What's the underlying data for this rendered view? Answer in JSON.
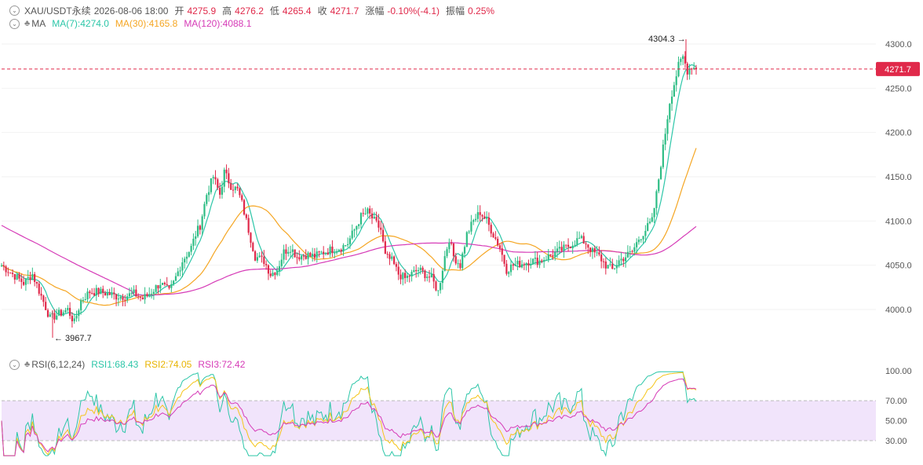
{
  "header": {
    "symbol": "XAU/USDT永续",
    "datetime": "2026-08-06 18:00",
    "open_label": "开",
    "open": "4275.9",
    "high_label": "高",
    "high": "4276.2",
    "low_label": "低",
    "low": "4265.4",
    "close_label": "收",
    "close": "4271.7",
    "change_label": "涨幅",
    "change": "-0.10%(-4.1)",
    "amp_label": "振幅",
    "amp": "0.25%"
  },
  "ma_legend": {
    "name": "MA",
    "ma7": "MA(7):4274.0",
    "ma30": "MA(30):4165.8",
    "ma120": "MA(120):4088.1"
  },
  "rsi_legend": {
    "name": "RSI(6,12,24)",
    "rsi1": "RSI1:68.43",
    "rsi2": "RSI2:74.05",
    "rsi3": "RSI3:72.42"
  },
  "colors": {
    "up": "#2ebd85",
    "down": "#e0294a",
    "ma7": "#2cc6a8",
    "ma30": "#f5a623",
    "ma120": "#d63bb7",
    "rsi1": "#2cc6a8",
    "rsi2": "#f5c518",
    "rsi3": "#d63bb7",
    "rsi_band": "#f1e4fb",
    "price_tag": "#e0294a"
  },
  "chart_data": [
    {
      "type": "candlestick",
      "y_ticks": [
        "4300.0",
        "4250.0",
        "4200.0",
        "4150.0",
        "4100.0",
        "4050.0",
        "4000.0"
      ],
      "ylim": [
        3950,
        4310
      ],
      "current_price": "4271.7",
      "annotations": {
        "max": "4304.3",
        "min": "3967.7"
      },
      "anchors": [
        [
          0,
          4050
        ],
        [
          5,
          4040
        ],
        [
          10,
          4030
        ],
        [
          14,
          4040
        ],
        [
          18,
          4015
        ],
        [
          22,
          3990
        ],
        [
          26,
          3995
        ],
        [
          30,
          4000
        ],
        [
          33,
          3985
        ],
        [
          36,
          4010
        ],
        [
          40,
          4020
        ],
        [
          44,
          4020
        ],
        [
          48,
          4018
        ],
        [
          52,
          4015
        ],
        [
          56,
          4015
        ],
        [
          60,
          4018
        ],
        [
          64,
          4012
        ],
        [
          68,
          4020
        ],
        [
          72,
          4030
        ],
        [
          76,
          4020
        ],
        [
          78,
          4030
        ],
        [
          82,
          4055
        ],
        [
          86,
          4070
        ],
        [
          88,
          4085
        ],
        [
          90,
          4095
        ],
        [
          93,
          4130
        ],
        [
          96,
          4150
        ],
        [
          99,
          4130
        ],
        [
          101,
          4155
        ],
        [
          104,
          4140
        ],
        [
          107,
          4135
        ],
        [
          109,
          4120
        ],
        [
          112,
          4090
        ],
        [
          115,
          4060
        ],
        [
          119,
          4055
        ],
        [
          122,
          4040
        ],
        [
          125,
          4045
        ],
        [
          128,
          4065
        ],
        [
          131,
          4070
        ],
        [
          134,
          4060
        ],
        [
          138,
          4062
        ],
        [
          142,
          4060
        ],
        [
          146,
          4065
        ],
        [
          150,
          4068
        ],
        [
          154,
          4070
        ],
        [
          157,
          4075
        ],
        [
          160,
          4090
        ],
        [
          163,
          4105
        ],
        [
          166,
          4110
        ],
        [
          169,
          4100
        ],
        [
          172,
          4090
        ],
        [
          174,
          4060
        ],
        [
          177,
          4055
        ],
        [
          180,
          4040
        ],
        [
          183,
          4035
        ],
        [
          186,
          4040
        ],
        [
          189,
          4045
        ],
        [
          192,
          4040
        ],
        [
          195,
          4035
        ],
        [
          198,
          4020
        ],
        [
          201,
          4060
        ],
        [
          203,
          4080
        ],
        [
          205,
          4060
        ],
        [
          208,
          4050
        ],
        [
          211,
          4085
        ],
        [
          214,
          4100
        ],
        [
          217,
          4110
        ],
        [
          220,
          4100
        ],
        [
          223,
          4085
        ],
        [
          226,
          4070
        ],
        [
          229,
          4045
        ],
        [
          232,
          4050
        ],
        [
          236,
          4052
        ],
        [
          240,
          4055
        ],
        [
          244,
          4055
        ],
        [
          248,
          4060
        ],
        [
          252,
          4065
        ],
        [
          256,
          4070
        ],
        [
          259,
          4075
        ],
        [
          262,
          4080
        ],
        [
          265,
          4075
        ],
        [
          268,
          4065
        ],
        [
          271,
          4060
        ],
        [
          274,
          4050
        ],
        [
          277,
          4045
        ],
        [
          280,
          4055
        ],
        [
          283,
          4060
        ],
        [
          286,
          4065
        ],
        [
          289,
          4080
        ],
        [
          292,
          4090
        ],
        [
          295,
          4100
        ],
        [
          297,
          4130
        ],
        [
          299,
          4165
        ],
        [
          301,
          4200
        ],
        [
          303,
          4235
        ],
        [
          305,
          4255
        ],
        [
          307,
          4275
        ],
        [
          309,
          4285
        ],
        [
          311,
          4270
        ],
        [
          313,
          4275
        ],
        [
          315,
          4271.7
        ]
      ]
    },
    {
      "type": "line",
      "name": "RSI",
      "y_ticks": [
        "100.00",
        "70.00",
        "50.00",
        "30.00"
      ],
      "band": [
        30,
        70
      ]
    }
  ]
}
